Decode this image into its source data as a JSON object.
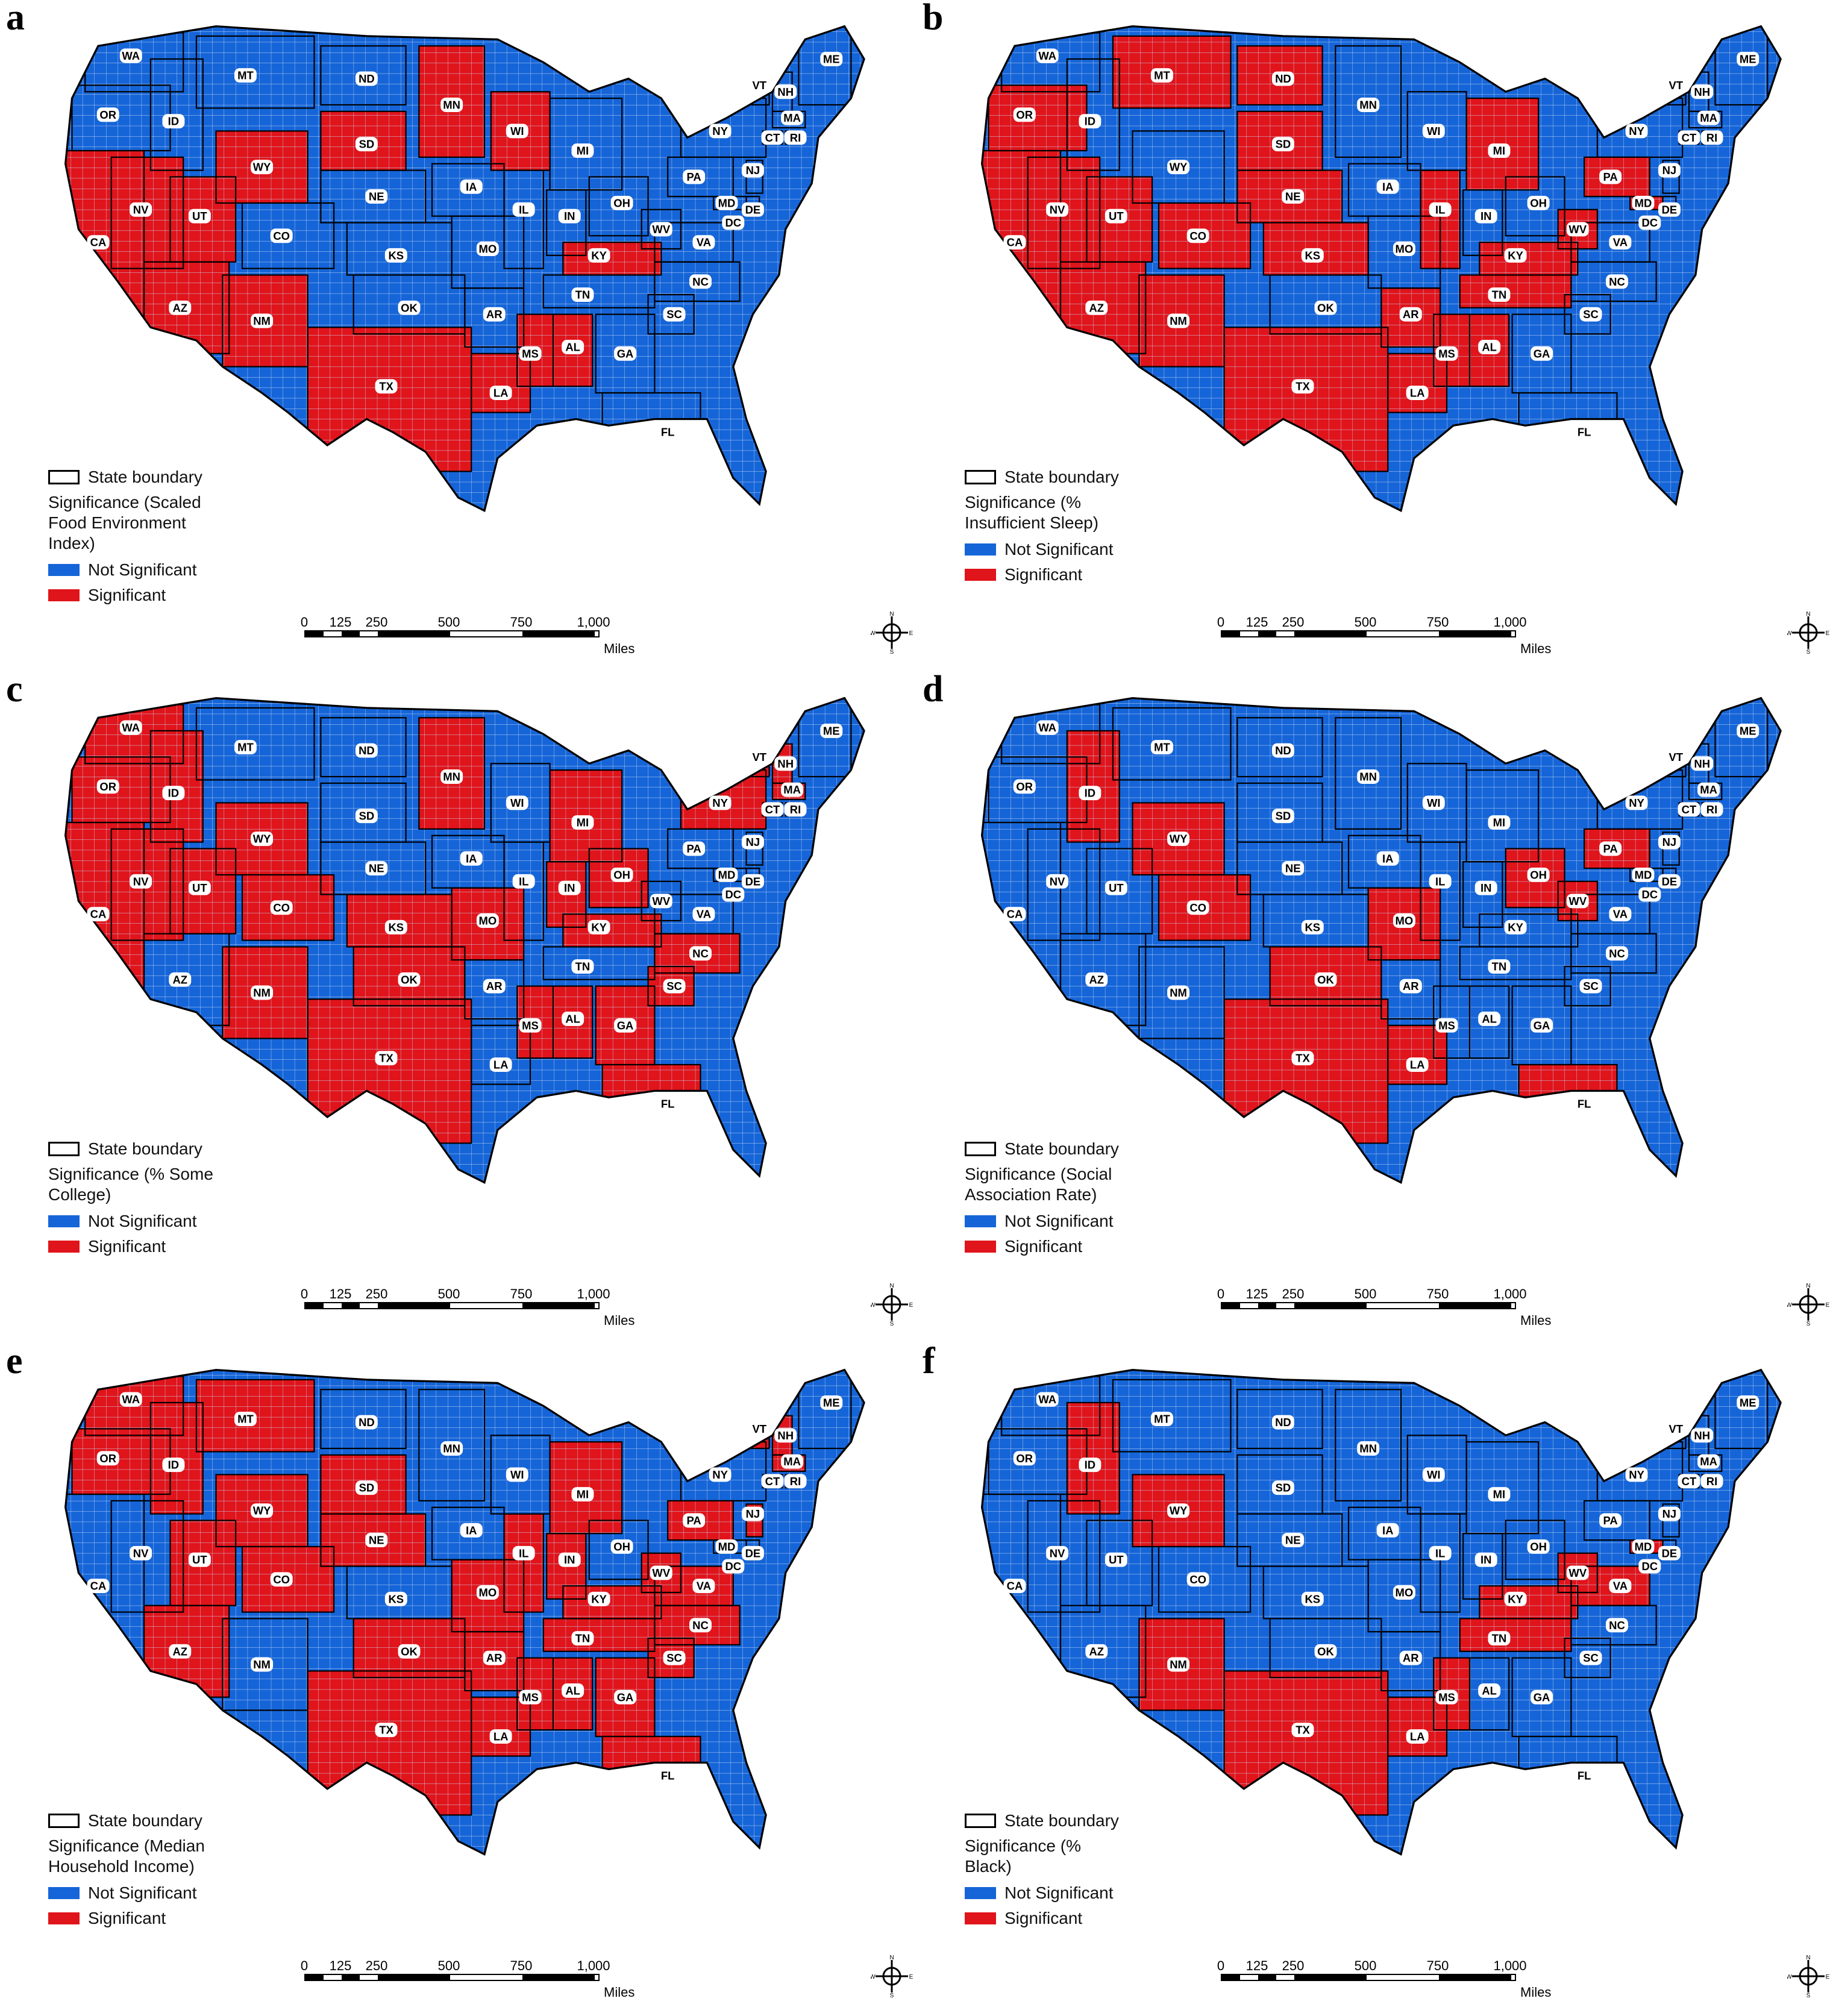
{
  "colors": {
    "not_significant": "#1565d8",
    "significant": "#e0141b",
    "boundary": "#000000",
    "county_lines": "#9ab8ea"
  },
  "legend_common": {
    "boundary_label": "State boundary",
    "not_significant_label": "Not Significant",
    "significant_label": "Significant"
  },
  "scale_bar": {
    "ticks": [
      "0",
      "125",
      "250",
      "500",
      "750",
      "1,000"
    ],
    "unit": "Miles"
  },
  "compass": {
    "n": "N",
    "s": "S",
    "e": "E",
    "w": "W"
  },
  "state_labels": [
    "WA",
    "OR",
    "CA",
    "ID",
    "NV",
    "MT",
    "WY",
    "UT",
    "AZ",
    "CO",
    "NM",
    "ND",
    "SD",
    "NE",
    "KS",
    "OK",
    "TX",
    "MN",
    "IA",
    "MO",
    "AR",
    "LA",
    "WI",
    "IL",
    "MI",
    "IN",
    "OH",
    "KY",
    "TN",
    "MS",
    "AL",
    "GA",
    "FL",
    "SC",
    "NC",
    "VA",
    "WV",
    "PA",
    "NY",
    "VT",
    "NH",
    "ME",
    "MA",
    "CT",
    "RI",
    "NJ",
    "DE",
    "MD",
    "DC"
  ],
  "panels": [
    {
      "letter": "a",
      "legend_title": "Significance (Scaled\nFood Environment\nIndex)",
      "significant_states": [
        "NV",
        "UT",
        "AZ",
        "NM",
        "CA",
        "WY",
        "SD",
        "MN",
        "WI",
        "MS",
        "AL",
        "TX",
        "KY",
        "LA"
      ],
      "significant_fraction": 0.34
    },
    {
      "letter": "b",
      "legend_title": "Significance (%\nInsufficient Sleep)",
      "significant_states": [
        "OR",
        "MT",
        "ND",
        "SD",
        "NE",
        "NV",
        "UT",
        "CA",
        "CO",
        "AZ",
        "NM",
        "TX",
        "KS",
        "IL",
        "KY",
        "WV",
        "PA",
        "MD",
        "TN",
        "AR",
        "MS",
        "AL",
        "LA",
        "MI"
      ],
      "significant_fraction": 0.55
    },
    {
      "letter": "c",
      "legend_title": "Significance (% Some\nCollege)",
      "significant_states": [
        "WA",
        "OR",
        "CA",
        "ID",
        "NV",
        "UT",
        "WY",
        "CO",
        "NM",
        "KS",
        "OK",
        "MO",
        "MN",
        "MI",
        "IN",
        "OH",
        "KY",
        "NC",
        "SC",
        "GA",
        "FL",
        "AL",
        "MS",
        "VT",
        "NH",
        "MA",
        "CT",
        "NY",
        "TX"
      ],
      "significant_fraction": 0.52
    },
    {
      "letter": "d",
      "legend_title": "Significance (Social\nAssociation Rate)",
      "significant_states": [
        "ID",
        "WY",
        "OH",
        "WV",
        "OK",
        "TX",
        "LA",
        "FL",
        "CO",
        "MO",
        "PA"
      ],
      "significant_fraction": 0.08
    },
    {
      "letter": "e",
      "legend_title": "Significance (Median\nHousehold Income)",
      "significant_states": [
        "WA",
        "OR",
        "ID",
        "MT",
        "WY",
        "SD",
        "NE",
        "UT",
        "AZ",
        "CO",
        "OK",
        "TX",
        "MO",
        "AR",
        "LA",
        "MS",
        "AL",
        "GA",
        "FL",
        "SC",
        "NC",
        "VA",
        "WV",
        "KY",
        "TN",
        "PA",
        "NJ",
        "MI",
        "IN",
        "IL",
        "NH",
        "VT",
        "MA"
      ],
      "significant_fraction": 0.55
    },
    {
      "letter": "f",
      "legend_title": "Significance (%\nBlack)",
      "significant_states": [
        "ID",
        "WY",
        "NM",
        "TX",
        "MS",
        "LA",
        "TN",
        "KY",
        "WV",
        "VA",
        "MD"
      ],
      "significant_fraction": 0.1
    }
  ]
}
